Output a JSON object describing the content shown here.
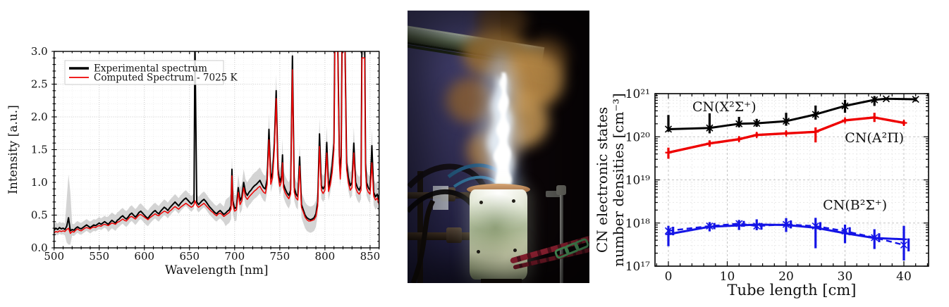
{
  "photo": {
    "alt": "Photograph of the experiment: a bright white-blue plasma plume rises from a glowing cylindrical reactor with a copper rim, turning into orange flames and smoke; dark laboratory background with a blue wall, pipes, tubes, a metal rod, a red cable and a green chain."
  },
  "chart_data": [
    {
      "id": "emission-spectrum",
      "type": "line",
      "title": "",
      "xlabel": "Wavelength [nm]",
      "ylabel": "Intensity [a.u.]",
      "xlim": [
        500,
        860
      ],
      "ylim": [
        0,
        3
      ],
      "xticks": [
        500,
        550,
        600,
        650,
        700,
        750,
        800,
        850
      ],
      "ytick_labels": [
        "0.0",
        "0.5",
        "1.0",
        "1.5",
        "2.0",
        "2.5",
        "3.0"
      ],
      "grid": true,
      "legend_position": "upper-left",
      "band_color": "#bdbdbd",
      "legend": [
        {
          "label": "Experimental spectrum",
          "color": "#000000",
          "lw": 3.5
        },
        {
          "label": "Computed Spectrum - 7025 K",
          "color": "#ee0000",
          "lw": 1.8
        }
      ],
      "series_names": [
        "wavelength_nm",
        "experimental",
        "computed"
      ],
      "points": [
        [
          500,
          0.27,
          0.23
        ],
        [
          502,
          0.3,
          0.25
        ],
        [
          504,
          0.28,
          0.24
        ],
        [
          506,
          0.31,
          0.26
        ],
        [
          508,
          0.29,
          0.25
        ],
        [
          510,
          0.3,
          0.26
        ],
        [
          512,
          0.28,
          0.25
        ],
        [
          514,
          0.33,
          0.28
        ],
        [
          516,
          0.46,
          0.3
        ],
        [
          518,
          0.26,
          0.22
        ],
        [
          520,
          0.28,
          0.25
        ],
        [
          522,
          0.27,
          0.24
        ],
        [
          524,
          0.3,
          0.27
        ],
        [
          526,
          0.32,
          0.29
        ],
        [
          528,
          0.3,
          0.27
        ],
        [
          530,
          0.29,
          0.26
        ],
        [
          532,
          0.31,
          0.28
        ],
        [
          534,
          0.33,
          0.3
        ],
        [
          536,
          0.35,
          0.31
        ],
        [
          538,
          0.33,
          0.3
        ],
        [
          540,
          0.31,
          0.29
        ],
        [
          542,
          0.33,
          0.31
        ],
        [
          544,
          0.35,
          0.32
        ],
        [
          546,
          0.34,
          0.31
        ],
        [
          548,
          0.36,
          0.33
        ],
        [
          550,
          0.38,
          0.34
        ],
        [
          552,
          0.36,
          0.33
        ],
        [
          554,
          0.38,
          0.35
        ],
        [
          556,
          0.4,
          0.36
        ],
        [
          558,
          0.38,
          0.35
        ],
        [
          560,
          0.36,
          0.34
        ],
        [
          562,
          0.39,
          0.36
        ],
        [
          564,
          0.42,
          0.38
        ],
        [
          566,
          0.4,
          0.37
        ],
        [
          568,
          0.38,
          0.36
        ],
        [
          570,
          0.42,
          0.39
        ],
        [
          572,
          0.44,
          0.4
        ],
        [
          574,
          0.47,
          0.42
        ],
        [
          576,
          0.49,
          0.44
        ],
        [
          578,
          0.46,
          0.42
        ],
        [
          580,
          0.44,
          0.41
        ],
        [
          582,
          0.47,
          0.44
        ],
        [
          584,
          0.51,
          0.47
        ],
        [
          586,
          0.53,
          0.48
        ],
        [
          588,
          0.5,
          0.46
        ],
        [
          590,
          0.47,
          0.44
        ],
        [
          592,
          0.5,
          0.47
        ],
        [
          594,
          0.54,
          0.5
        ],
        [
          596,
          0.56,
          0.51
        ],
        [
          598,
          0.53,
          0.49
        ],
        [
          600,
          0.5,
          0.47
        ],
        [
          602,
          0.47,
          0.45
        ],
        [
          604,
          0.45,
          0.43
        ],
        [
          606,
          0.49,
          0.46
        ],
        [
          608,
          0.52,
          0.48
        ],
        [
          610,
          0.55,
          0.5
        ],
        [
          612,
          0.57,
          0.52
        ],
        [
          614,
          0.54,
          0.5
        ],
        [
          616,
          0.52,
          0.49
        ],
        [
          618,
          0.56,
          0.52
        ],
        [
          620,
          0.59,
          0.54
        ],
        [
          622,
          0.62,
          0.56
        ],
        [
          624,
          0.6,
          0.55
        ],
        [
          626,
          0.57,
          0.53
        ],
        [
          628,
          0.61,
          0.56
        ],
        [
          630,
          0.64,
          0.58
        ],
        [
          632,
          0.67,
          0.61
        ],
        [
          634,
          0.7,
          0.63
        ],
        [
          636,
          0.67,
          0.61
        ],
        [
          638,
          0.64,
          0.59
        ],
        [
          640,
          0.68,
          0.62
        ],
        [
          642,
          0.71,
          0.64
        ],
        [
          644,
          0.74,
          0.66
        ],
        [
          646,
          0.76,
          0.68
        ],
        [
          648,
          0.73,
          0.66
        ],
        [
          650,
          0.7,
          0.64
        ],
        [
          652,
          0.67,
          0.62
        ],
        [
          654,
          0.7,
          0.64
        ],
        [
          655,
          0.72,
          0.66
        ],
        [
          656,
          3.2,
          0.72
        ],
        [
          658,
          0.7,
          0.65
        ],
        [
          660,
          0.66,
          0.62
        ],
        [
          662,
          0.69,
          0.64
        ],
        [
          664,
          0.72,
          0.66
        ],
        [
          666,
          0.74,
          0.68
        ],
        [
          668,
          0.71,
          0.65
        ],
        [
          670,
          0.67,
          0.62
        ],
        [
          672,
          0.63,
          0.59
        ],
        [
          674,
          0.6,
          0.56
        ],
        [
          676,
          0.57,
          0.54
        ],
        [
          678,
          0.54,
          0.51
        ],
        [
          680,
          0.52,
          0.49
        ],
        [
          682,
          0.55,
          0.52
        ],
        [
          684,
          0.57,
          0.53
        ],
        [
          686,
          0.54,
          0.51
        ],
        [
          688,
          0.51,
          0.48
        ],
        [
          690,
          0.53,
          0.5
        ],
        [
          692,
          0.56,
          0.52
        ],
        [
          694,
          0.58,
          0.54
        ],
        [
          696,
          0.64,
          0.59
        ],
        [
          697,
          1.2,
          1.1
        ],
        [
          698,
          0.72,
          0.66
        ],
        [
          700,
          0.6,
          0.56
        ],
        [
          702,
          0.62,
          0.58
        ],
        [
          704,
          0.92,
          0.85
        ],
        [
          706,
          0.72,
          0.66
        ],
        [
          708,
          0.78,
          0.72
        ],
        [
          710,
          1.0,
          0.92
        ],
        [
          712,
          0.85,
          0.78
        ],
        [
          714,
          0.8,
          0.74
        ],
        [
          716,
          0.85,
          0.78
        ],
        [
          718,
          0.88,
          0.81
        ],
        [
          720,
          0.92,
          0.84
        ],
        [
          722,
          0.95,
          0.87
        ],
        [
          724,
          0.97,
          0.89
        ],
        [
          726,
          1.0,
          0.92
        ],
        [
          728,
          1.03,
          0.94
        ],
        [
          730,
          0.97,
          0.89
        ],
        [
          732,
          0.92,
          0.85
        ],
        [
          734,
          0.9,
          0.83
        ],
        [
          736,
          1.05,
          0.97
        ],
        [
          738,
          1.81,
          1.65
        ],
        [
          740,
          1.05,
          0.97
        ],
        [
          742,
          1.15,
          1.07
        ],
        [
          744,
          1.6,
          1.5
        ],
        [
          746,
          2.4,
          2.28
        ],
        [
          748,
          1.2,
          1.12
        ],
        [
          750,
          1.0,
          0.94
        ],
        [
          752,
          1.1,
          1.02
        ],
        [
          753,
          1.42,
          1.3
        ],
        [
          754,
          0.98,
          0.92
        ],
        [
          756,
          0.9,
          0.84
        ],
        [
          758,
          0.84,
          0.79
        ],
        [
          760,
          0.8,
          0.75
        ],
        [
          762,
          0.88,
          0.82
        ],
        [
          764,
          2.93,
          2.72
        ],
        [
          766,
          0.92,
          0.85
        ],
        [
          768,
          0.82,
          0.76
        ],
        [
          770,
          0.78,
          0.73
        ],
        [
          772,
          1.39,
          1.25
        ],
        [
          774,
          0.66,
          0.62
        ],
        [
          776,
          0.58,
          0.55
        ],
        [
          778,
          0.5,
          0.47
        ],
        [
          780,
          0.46,
          0.43
        ],
        [
          782,
          0.44,
          0.41
        ],
        [
          784,
          0.43,
          0.41
        ],
        [
          786,
          0.44,
          0.42
        ],
        [
          788,
          0.46,
          0.43
        ],
        [
          790,
          0.52,
          0.48
        ],
        [
          792,
          0.7,
          0.64
        ],
        [
          794,
          1.74,
          1.55
        ],
        [
          796,
          0.95,
          0.88
        ],
        [
          798,
          0.9,
          0.83
        ],
        [
          800,
          0.95,
          0.88
        ],
        [
          802,
          1.61,
          1.45
        ],
        [
          804,
          0.92,
          0.86
        ],
        [
          806,
          1.05,
          0.97
        ],
        [
          808,
          1.25,
          1.15
        ],
        [
          810,
          1.6,
          1.5
        ],
        [
          811,
          3.3,
          3.2
        ],
        [
          814,
          3.3,
          3.2
        ],
        [
          816,
          1.4,
          1.3
        ],
        [
          817,
          1.13,
          1.05
        ],
        [
          818,
          1.4,
          1.3
        ],
        [
          819,
          3.3,
          3.2
        ],
        [
          822,
          3.3,
          3.2
        ],
        [
          824,
          1.3,
          1.2
        ],
        [
          826,
          1.07,
          0.99
        ],
        [
          828,
          0.95,
          0.88
        ],
        [
          830,
          1.0,
          0.92
        ],
        [
          832,
          1.6,
          1.45
        ],
        [
          834,
          1.0,
          0.92
        ],
        [
          836,
          0.92,
          0.85
        ],
        [
          838,
          0.88,
          0.82
        ],
        [
          840,
          0.95,
          0.88
        ],
        [
          841,
          3.2,
          2.9
        ],
        [
          844,
          3.2,
          2.9
        ],
        [
          845,
          1.3,
          1.18
        ],
        [
          846,
          1.0,
          0.92
        ],
        [
          848,
          0.92,
          0.85
        ],
        [
          850,
          0.88,
          0.82
        ],
        [
          852,
          1.56,
          1.3
        ],
        [
          854,
          0.85,
          0.79
        ],
        [
          856,
          0.78,
          0.73
        ],
        [
          858,
          0.82,
          0.76
        ],
        [
          860,
          0.72,
          0.66
        ]
      ],
      "band_overrides": [
        [
          514,
          0.08,
          0.75
        ],
        [
          516,
          0.05,
          1.12
        ],
        [
          518,
          0.05,
          0.85
        ]
      ]
    },
    {
      "id": "cn-number-densities",
      "type": "line",
      "xlabel": "Tube length [cm]",
      "ylabel_line1": "CN electronic states",
      "ylabel_line2": "number densities [cm⁻³]",
      "xlim": [
        -2.3,
        44.2
      ],
      "ylog_decades": [
        17,
        21
      ],
      "xticks": [
        0,
        10,
        20,
        30,
        40
      ],
      "ytick_labels": [
        "10¹⁷",
        "10¹⁸",
        "10¹⁹",
        "10²⁰",
        "10²¹"
      ],
      "grid": true,
      "series": [
        {
          "name": "CN(X²Σ⁺)",
          "color": "#000000",
          "marker": "x",
          "style": "solid",
          "lw": 3.0,
          "x": [
            0,
            7,
            12,
            15,
            20,
            25,
            30,
            35,
            37,
            42
          ],
          "y": [
            1.5e+20,
            1.6e+20,
            2e+20,
            2.05e+20,
            2.3e+20,
            3.3e+20,
            5.2e+20,
            7.2e+20,
            7.6e+20,
            7.4e+20
          ],
          "err_lo": [
            1.3e+20,
            1.2e+20,
            1.65e+20,
            1.7e+20,
            1.8e+20,
            2.5e+20,
            3.6e+20,
            5.2e+20,
            7e+20,
            6.6e+20
          ],
          "err_hi": [
            3.2e+20,
            3.5e+20,
            2.9e+20,
            2.6e+20,
            3.6e+20,
            5.3e+20,
            7.2e+20,
            8.8e+20,
            8.2e+20,
            8.2e+20
          ]
        },
        {
          "name": "CN(A²Π)",
          "color": "#ee0000",
          "marker": "plus",
          "style": "solid",
          "lw": 3.4,
          "x": [
            0,
            7,
            12,
            15,
            20,
            25,
            30,
            35,
            40
          ],
          "y": [
            4.3e+19,
            7e+19,
            8.8e+19,
            1.1e+20,
            1.2e+20,
            1.3e+20,
            2.4e+20,
            2.8e+20,
            2.1e+20
          ],
          "err_lo": [
            3.1e+19,
            5.9e+19,
            7.9e+19,
            1e+20,
            1.1e+20,
            7.4e+19,
            2.2e+20,
            2.2e+20,
            1.85e+20
          ],
          "err_hi": [
            5.6e+19,
            8.2e+19,
            9.8e+19,
            1.25e+20,
            1.35e+20,
            1.65e+20,
            2.65e+20,
            3.6e+20,
            2.35e+20
          ]
        },
        {
          "name": "CN(B²Σ⁺) solid",
          "color": "#1414e6",
          "marker": "plus",
          "style": "solid",
          "lw": 3.0,
          "x": [
            0,
            7,
            12,
            15,
            20,
            25,
            30,
            35,
            40
          ],
          "y": [
            5.5e+17,
            8.2e+17,
            8.8e+17,
            9.2e+17,
            9e+17,
            7.8e+17,
            5.8e+17,
            4.5e+17,
            4.2e+17
          ],
          "err_lo": [
            2.9e+17,
            6.4e+17,
            6.9e+17,
            6.8e+17,
            6.2e+17,
            2.6e+17,
            3.4e+17,
            2.5e+17,
            1.35e+17
          ],
          "err_hi": [
            8.6e+17,
            1.05e+18,
            1.18e+18,
            1.22e+18,
            1.3e+18,
            1.32e+18,
            9.2e+17,
            7.2e+17,
            8.6e+17
          ]
        },
        {
          "name": "CN(B²Σ⁺) dashed",
          "color": "#1414e6",
          "marker": "x",
          "style": "dashed",
          "lw": 2.4,
          "err_offset": 0.8,
          "x": [
            0,
            7,
            12,
            15,
            20,
            25,
            30,
            35,
            40
          ],
          "y": [
            6.6e+17,
            8.5e+17,
            9.7e+17,
            8.5e+17,
            9.3e+17,
            8.5e+17,
            6.5e+17,
            4.6e+17,
            3.1e+17
          ],
          "err_lo": [
            5.2e+17,
            7.2e+17,
            8.2e+17,
            7e+17,
            7.5e+17,
            6.8e+17,
            5.2e+17,
            3.6e+17,
            2.2e+17
          ],
          "err_hi": [
            8.2e+17,
            1e+18,
            1.12e+18,
            1e+18,
            1.15e+18,
            1.05e+18,
            8e+17,
            5.8e+17,
            4.4e+17
          ]
        }
      ],
      "annotations": [
        {
          "text": "CN(X²Σ⁺)",
          "color": "#000000",
          "x": 9.5,
          "y": 4.9e+20
        },
        {
          "text": "CN(A²Π)",
          "color": "#ee0000",
          "x": 35.0,
          "y": 9.3e+19
        },
        {
          "text": "CN(B²Σ⁺)",
          "color": "#1414e6",
          "x": 31.7,
          "y": 2.6e+18
        }
      ]
    }
  ]
}
